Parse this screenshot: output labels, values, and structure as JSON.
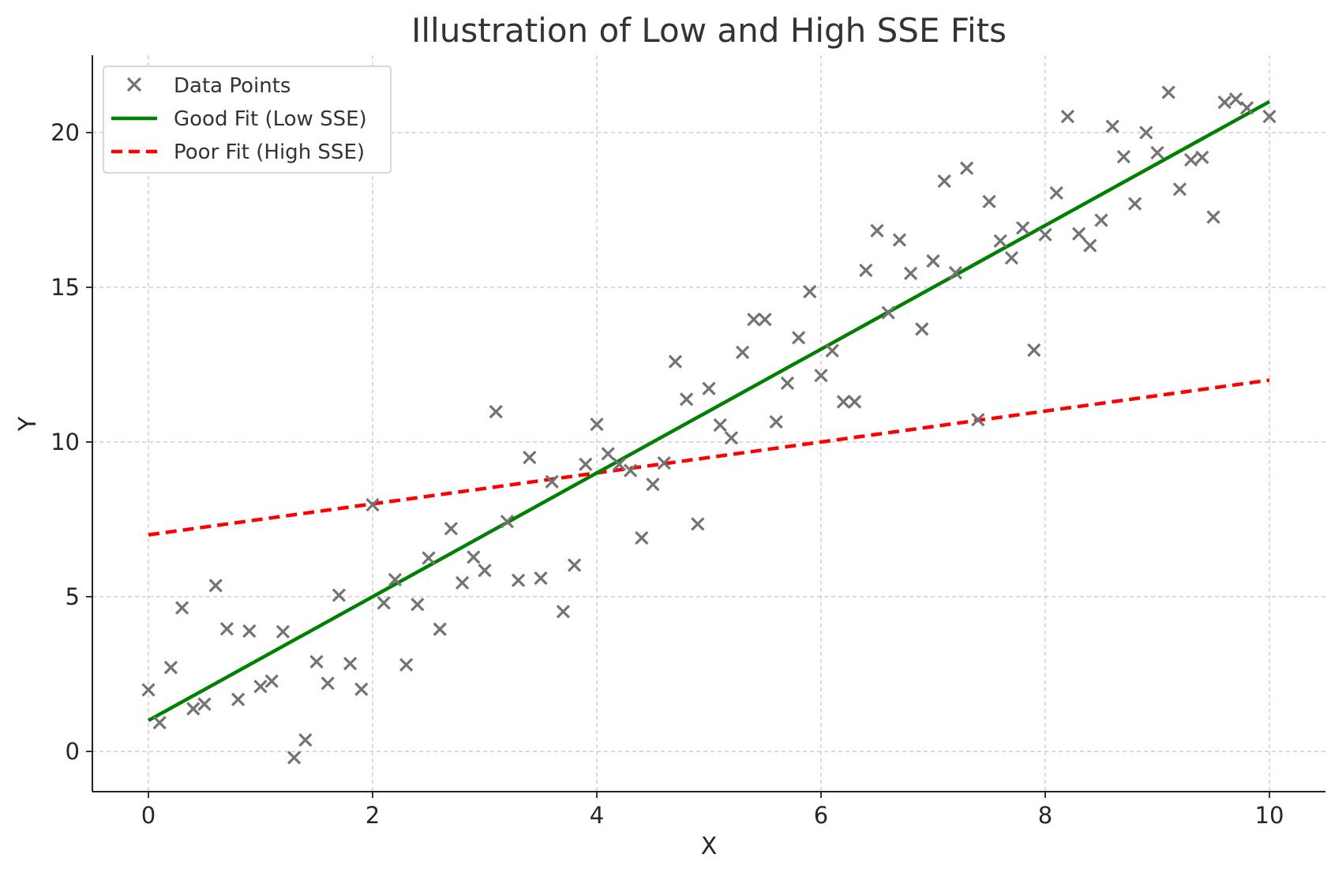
{
  "chart_data": {
    "type": "scatter",
    "title": "Illustration of Low and High SSE Fits",
    "xlabel": "X",
    "ylabel": "Y",
    "xlim": [
      -0.5,
      10.5
    ],
    "ylim": [
      -1.3,
      22.5
    ],
    "xticks": [
      0,
      2,
      4,
      6,
      8,
      10
    ],
    "yticks": [
      0,
      5,
      10,
      15,
      20
    ],
    "grid": true,
    "legend_position": "top-left",
    "colors": {
      "points": "#737373",
      "good_fit": "#008000",
      "poor_fit": "#ff0000"
    },
    "series": [
      {
        "name": "Data Points",
        "kind": "scatter",
        "marker": "x",
        "points": [
          [
            0.0,
            1.99
          ],
          [
            0.1,
            0.93
          ],
          [
            0.2,
            2.71
          ],
          [
            0.3,
            4.64
          ],
          [
            0.4,
            1.38
          ],
          [
            0.5,
            1.53
          ],
          [
            0.6,
            5.36
          ],
          [
            0.7,
            3.96
          ],
          [
            0.8,
            1.68
          ],
          [
            0.9,
            3.89
          ],
          [
            1.0,
            2.1
          ],
          [
            1.1,
            2.27
          ],
          [
            1.2,
            3.87
          ],
          [
            1.3,
            -0.2
          ],
          [
            1.4,
            0.37
          ],
          [
            1.5,
            2.9
          ],
          [
            1.6,
            2.2
          ],
          [
            1.7,
            5.05
          ],
          [
            1.8,
            2.84
          ],
          [
            1.9,
            2.01
          ],
          [
            2.0,
            7.97
          ],
          [
            2.1,
            4.8
          ],
          [
            2.2,
            5.55
          ],
          [
            2.3,
            2.8
          ],
          [
            2.4,
            4.75
          ],
          [
            2.5,
            6.25
          ],
          [
            2.6,
            3.95
          ],
          [
            2.7,
            7.2
          ],
          [
            2.8,
            5.45
          ],
          [
            2.9,
            6.28
          ],
          [
            3.0,
            5.85
          ],
          [
            3.1,
            10.98
          ],
          [
            3.2,
            7.43
          ],
          [
            3.3,
            5.53
          ],
          [
            3.4,
            9.5
          ],
          [
            3.5,
            5.6
          ],
          [
            3.6,
            8.72
          ],
          [
            3.7,
            4.52
          ],
          [
            3.8,
            6.02
          ],
          [
            3.9,
            9.28
          ],
          [
            4.0,
            10.57
          ],
          [
            4.1,
            9.62
          ],
          [
            4.2,
            9.28
          ],
          [
            4.3,
            9.08
          ],
          [
            4.4,
            6.9
          ],
          [
            4.5,
            8.63
          ],
          [
            4.6,
            9.32
          ],
          [
            4.7,
            12.6
          ],
          [
            4.8,
            11.38
          ],
          [
            4.9,
            7.35
          ],
          [
            5.0,
            11.73
          ],
          [
            5.1,
            10.55
          ],
          [
            5.2,
            10.13
          ],
          [
            5.3,
            12.9
          ],
          [
            5.4,
            13.96
          ],
          [
            5.5,
            13.96
          ],
          [
            5.6,
            10.65
          ],
          [
            5.7,
            11.9
          ],
          [
            5.8,
            13.37
          ],
          [
            5.9,
            14.86
          ],
          [
            6.0,
            12.15
          ],
          [
            6.1,
            12.95
          ],
          [
            6.2,
            11.3
          ],
          [
            6.3,
            11.3
          ],
          [
            6.4,
            15.55
          ],
          [
            6.5,
            16.83
          ],
          [
            6.6,
            14.18
          ],
          [
            6.7,
            16.53
          ],
          [
            6.8,
            15.45
          ],
          [
            6.9,
            13.65
          ],
          [
            7.0,
            15.85
          ],
          [
            7.1,
            18.43
          ],
          [
            7.2,
            15.47
          ],
          [
            7.3,
            18.85
          ],
          [
            7.4,
            10.72
          ],
          [
            7.5,
            17.77
          ],
          [
            7.6,
            16.5
          ],
          [
            7.7,
            15.95
          ],
          [
            7.8,
            16.92
          ],
          [
            7.9,
            12.97
          ],
          [
            8.0,
            16.7
          ],
          [
            8.1,
            18.05
          ],
          [
            8.2,
            20.52
          ],
          [
            8.3,
            16.73
          ],
          [
            8.4,
            16.35
          ],
          [
            8.5,
            17.17
          ],
          [
            8.6,
            20.2
          ],
          [
            8.7,
            19.22
          ],
          [
            8.8,
            17.7
          ],
          [
            8.9,
            20.0
          ],
          [
            9.0,
            19.35
          ],
          [
            9.1,
            21.3
          ],
          [
            9.2,
            18.17
          ],
          [
            9.3,
            19.12
          ],
          [
            9.4,
            19.2
          ],
          [
            9.5,
            17.27
          ],
          [
            9.6,
            20.98
          ],
          [
            9.7,
            21.08
          ],
          [
            9.8,
            20.8
          ],
          [
            10.0,
            20.52
          ]
        ]
      },
      {
        "name": "Good Fit (Low SSE)",
        "kind": "line",
        "style": "solid",
        "points": [
          [
            0,
            1
          ],
          [
            10,
            21
          ]
        ]
      },
      {
        "name": "Poor Fit (High SSE)",
        "kind": "line",
        "style": "dashed",
        "points": [
          [
            0,
            7
          ],
          [
            10,
            12
          ]
        ]
      }
    ]
  }
}
